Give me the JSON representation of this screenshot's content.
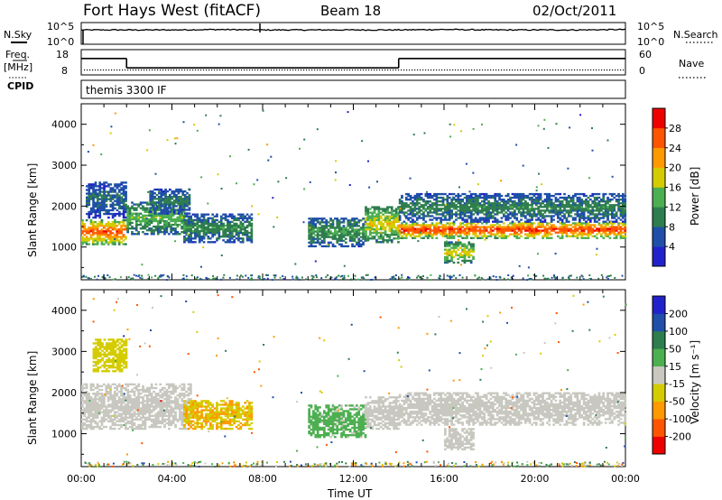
{
  "header": {
    "station": "Fort Hays West (fitACF)",
    "beam": "Beam 18",
    "date": "02/Oct/2011"
  },
  "colors": {
    "axis": "#000000",
    "background": "#ffffff",
    "power_scale": [
      "#2222cc",
      "#1f4fa8",
      "#2e7d4f",
      "#4caf50",
      "#d4cc00",
      "#ff9900",
      "#ff5500",
      "#ee0000"
    ],
    "velocity_scale": [
      "#ee0000",
      "#ff5500",
      "#ff9900",
      "#d4cc00",
      "#c8c8c0",
      "#4caf50",
      "#2e7d4f",
      "#1f4fa8",
      "#2222cc"
    ],
    "ground_scatter": "#c8c8c0"
  },
  "chart_data": [
    {
      "type": "line",
      "panel": "noise-search",
      "left_label": "N.Sky",
      "right_label": "N.Search",
      "left_ticks": [
        "10^5",
        "10^0"
      ],
      "right_ticks": [
        "10^5",
        "10^0"
      ],
      "x": [
        "00:00",
        "02:00",
        "04:00",
        "06:00",
        "08:00",
        "10:00",
        "12:00",
        "14:00",
        "16:00",
        "18:00",
        "20:00",
        "22:00",
        "24:00"
      ],
      "series": [
        {
          "name": "N.Sky",
          "values": [
            3.3,
            3.3,
            3.3,
            3.4,
            3.3,
            3.3,
            3.3,
            3.3,
            3.4,
            3.3,
            3.3,
            3.3,
            3.4
          ]
        }
      ],
      "ylim": [
        0,
        5
      ]
    },
    {
      "type": "line",
      "panel": "frequency-nave",
      "left_label": "Freq.",
      "left_unit": "[MHz]",
      "right_label": "Nave",
      "left_ticks": [
        "18",
        "8"
      ],
      "right_ticks": [
        "60",
        "0"
      ],
      "segments": [
        {
          "start": "00:00",
          "end": "02:00",
          "freq": 14.5
        },
        {
          "start": "02:00",
          "end": "14:00",
          "freq": 10.8
        },
        {
          "start": "14:00",
          "end": "24:00",
          "freq": 14.5
        }
      ],
      "nave": 13,
      "ylim": [
        8,
        18
      ],
      "nave_lim": [
        0,
        60
      ]
    },
    {
      "type": "heatmap",
      "panel": "cpid",
      "label": "CPID",
      "program": "themis 3300 IF"
    },
    {
      "type": "heatmap",
      "panel": "power",
      "ylabel": "Slant Range [km]",
      "xlabel": "Time UT",
      "yticks": [
        "1000",
        "2000",
        "3000",
        "4000"
      ],
      "ylim": [
        200,
        4500
      ],
      "xticks": [
        "00:00",
        "04:00",
        "08:00",
        "12:00",
        "16:00",
        "20:00",
        "00:00"
      ],
      "xlim": [
        0,
        24
      ],
      "colorbar": {
        "title": "Power [dB]",
        "ticks": [
          "4",
          "8",
          "12",
          "16",
          "20",
          "24",
          "28"
        ],
        "range": [
          0,
          30
        ]
      },
      "features": [
        {
          "t0": 0.0,
          "t1": 2.0,
          "r0": 1050,
          "r1": 1650,
          "peak": 26
        },
        {
          "t0": 0.2,
          "t1": 2.0,
          "r0": 1700,
          "r1": 2600,
          "peak": 8
        },
        {
          "t0": 2.0,
          "t1": 4.5,
          "r0": 1300,
          "r1": 2100,
          "peak": 14
        },
        {
          "t0": 3.0,
          "t1": 4.8,
          "r0": 1800,
          "r1": 2400,
          "peak": 9
        },
        {
          "t0": 4.5,
          "t1": 7.5,
          "r0": 1100,
          "r1": 1800,
          "peak": 11
        },
        {
          "t0": 10.0,
          "t1": 12.5,
          "r0": 1000,
          "r1": 1700,
          "peak": 12
        },
        {
          "t0": 12.5,
          "t1": 14.0,
          "r0": 1100,
          "r1": 2000,
          "peak": 18
        },
        {
          "t0": 14.0,
          "t1": 24.0,
          "r0": 1200,
          "r1": 1600,
          "peak": 27
        },
        {
          "t0": 14.0,
          "t1": 24.0,
          "r0": 1600,
          "r1": 2300,
          "peak": 10
        },
        {
          "t0": 16.0,
          "t1": 17.3,
          "r0": 600,
          "r1": 1100,
          "peak": 18
        }
      ]
    },
    {
      "type": "heatmap",
      "panel": "velocity",
      "ylabel": "Slant Range [km]",
      "xlabel": "Time UT",
      "yticks": [
        "1000",
        "2000",
        "3000",
        "4000"
      ],
      "ylim": [
        200,
        4500
      ],
      "xticks": [
        "00:00",
        "04:00",
        "08:00",
        "12:00",
        "16:00",
        "20:00",
        "00:00"
      ],
      "xlim": [
        0,
        24
      ],
      "colorbar": {
        "title": "Velocity [m s⁻¹]",
        "ticks": [
          "200",
          "100",
          "50",
          "15",
          "-15",
          "-50",
          "-100",
          "-200"
        ],
        "range": [
          -250,
          250
        ]
      },
      "features": [
        {
          "t0": 0.0,
          "t1": 4.8,
          "r0": 1100,
          "r1": 2200,
          "velocity": 0
        },
        {
          "t0": 4.5,
          "t1": 7.5,
          "r0": 1100,
          "r1": 1800,
          "velocity": -80
        },
        {
          "t0": 10.0,
          "t1": 12.5,
          "r0": 900,
          "r1": 1700,
          "velocity": 40
        },
        {
          "t0": 12.5,
          "t1": 14.0,
          "r0": 1100,
          "r1": 1900,
          "velocity": 0
        },
        {
          "t0": 14.0,
          "t1": 24.0,
          "r0": 1200,
          "r1": 2000,
          "velocity": 0
        },
        {
          "t0": 16.0,
          "t1": 17.3,
          "r0": 600,
          "r1": 1100,
          "velocity": 0
        },
        {
          "t0": 0.5,
          "t1": 2.0,
          "r0": 2500,
          "r1": 3300,
          "velocity": -60
        }
      ]
    }
  ],
  "xaxis": {
    "title": "Time UT"
  }
}
